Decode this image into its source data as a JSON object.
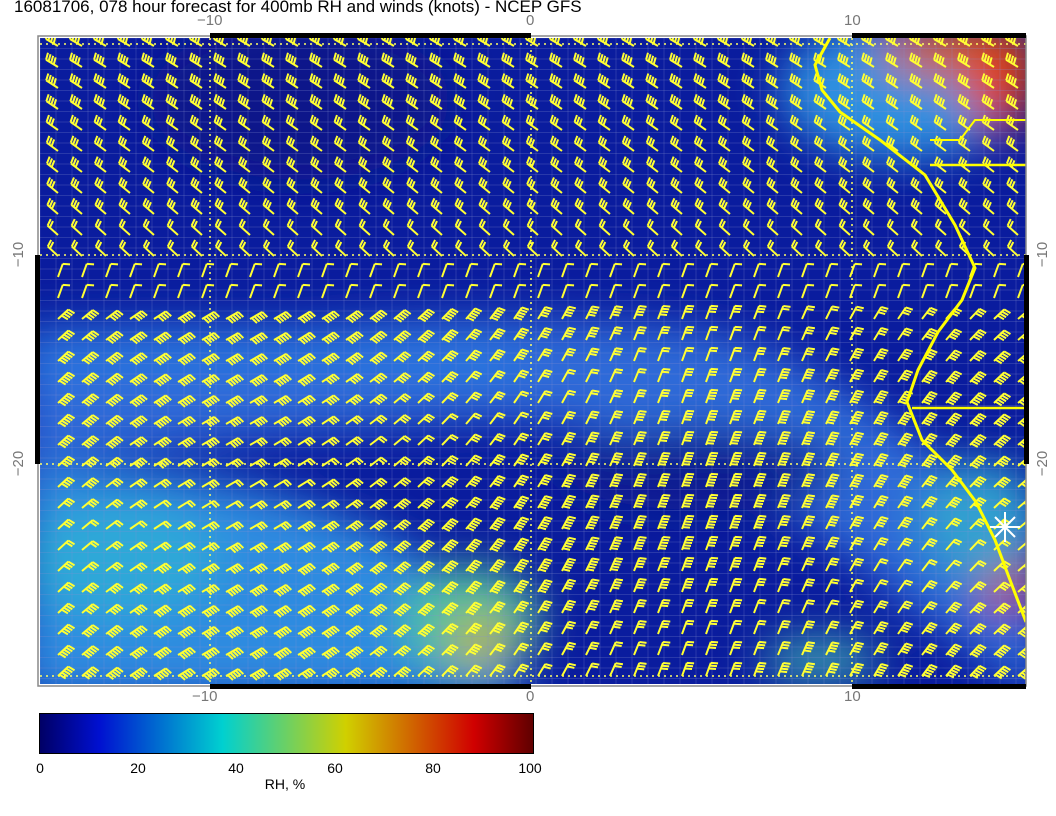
{
  "title": "16081706, 078 hour forecast for 400mb RH and winds (knots) - NCEP GFS",
  "map": {
    "lon_ticks": [
      "−10",
      "0",
      "10"
    ],
    "lat_ticks": [
      "−10",
      "−20"
    ],
    "lon_range": [
      -15.4,
      15.4
    ],
    "lat_range": [
      -30.6,
      0.5
    ],
    "field": "400mb relative humidity",
    "wind_units": "knots",
    "barb_color": "#ffff33",
    "coastline_color": "#ffff00",
    "marker_icon": "star-marker"
  },
  "colorbar": {
    "label": "RH, %",
    "ticks": [
      "0",
      "20",
      "40",
      "60",
      "80",
      "100"
    ],
    "range": [
      0,
      100
    ],
    "colors": [
      "#000066",
      "#0010d0",
      "#00d0d0",
      "#d0d000",
      "#d00000",
      "#600000"
    ]
  }
}
